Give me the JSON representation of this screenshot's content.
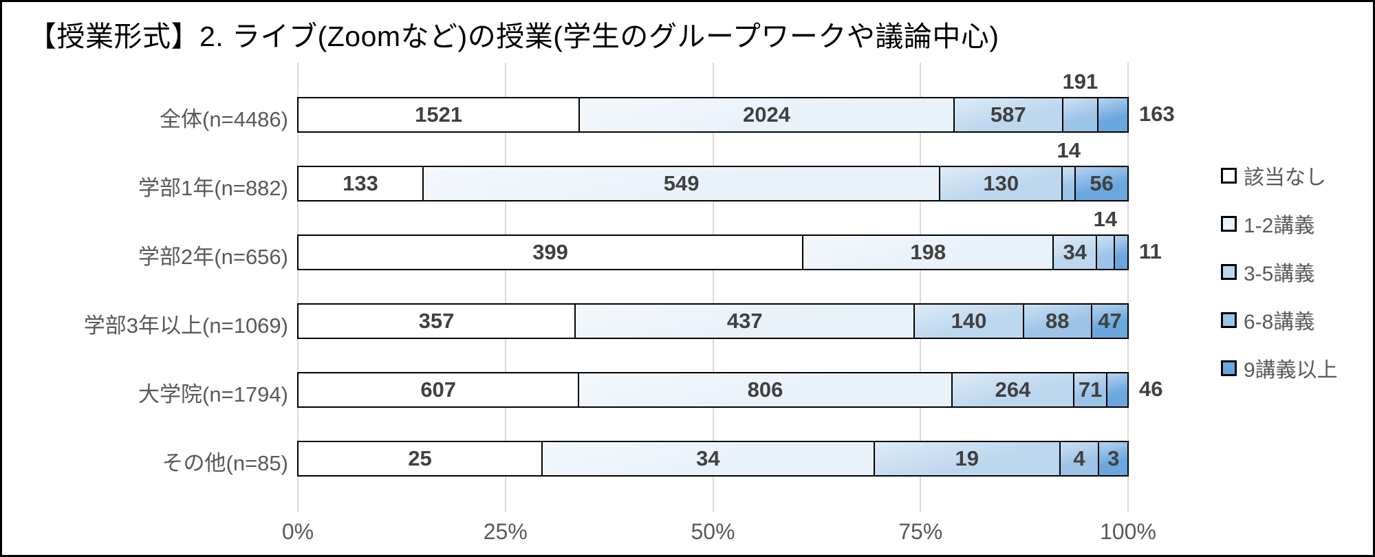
{
  "title": "【授業形式】2. ライブ(Zoomなど)の授業(学生のグループワークや議論中心)",
  "chart_data": {
    "type": "bar",
    "orientation": "horizontal",
    "stacked": "100percent",
    "title": "【授業形式】2. ライブ(Zoomなど)の授業(学生のグループワークや議論中心)",
    "categories": [
      "全体(n=4486)",
      "学部1年(n=882)",
      "学部2年(n=656)",
      "学部3年以上(n=1069)",
      "大学院(n=1794)",
      "その他(n=85)"
    ],
    "series": [
      {
        "name": "該当なし",
        "color": "#ffffff",
        "values": [
          1521,
          133,
          399,
          357,
          607,
          25
        ]
      },
      {
        "name": "1-2講義",
        "color": "#e9f1f9",
        "values": [
          2024,
          549,
          198,
          437,
          806,
          34
        ]
      },
      {
        "name": "3-5講義",
        "color": "#bdd7ee",
        "values": [
          587,
          130,
          34,
          140,
          264,
          19
        ]
      },
      {
        "name": "6-8講義",
        "color": "#9cc3e8",
        "values": [
          191,
          14,
          14,
          88,
          71,
          4
        ]
      },
      {
        "name": "9講義以上",
        "color": "#6ba7df",
        "values": [
          163,
          56,
          11,
          47,
          46,
          3
        ]
      }
    ],
    "totals": [
      4486,
      882,
      656,
      1069,
      1794,
      85
    ],
    "label_positions": [
      [
        "inside",
        "inside",
        "inside",
        "above",
        "outside"
      ],
      [
        "inside",
        "inside",
        "inside",
        "above",
        "inside"
      ],
      [
        "inside",
        "inside",
        "inside",
        "above",
        "outside"
      ],
      [
        "inside",
        "inside",
        "inside",
        "inside",
        "inside"
      ],
      [
        "inside",
        "inside",
        "inside",
        "inside",
        "outside"
      ],
      [
        "inside",
        "inside",
        "inside",
        "inside",
        "inside"
      ]
    ],
    "x_ticks": [
      "0%",
      "25%",
      "50%",
      "75%",
      "100%"
    ],
    "xlim": [
      0,
      100
    ],
    "grid": true,
    "legend_position": "right",
    "colors": {
      "segment_border": "#000000",
      "gridline": "#d9d9d9",
      "value_label": "#404040",
      "axis_text": "#595959",
      "title_text": "#000000"
    }
  }
}
